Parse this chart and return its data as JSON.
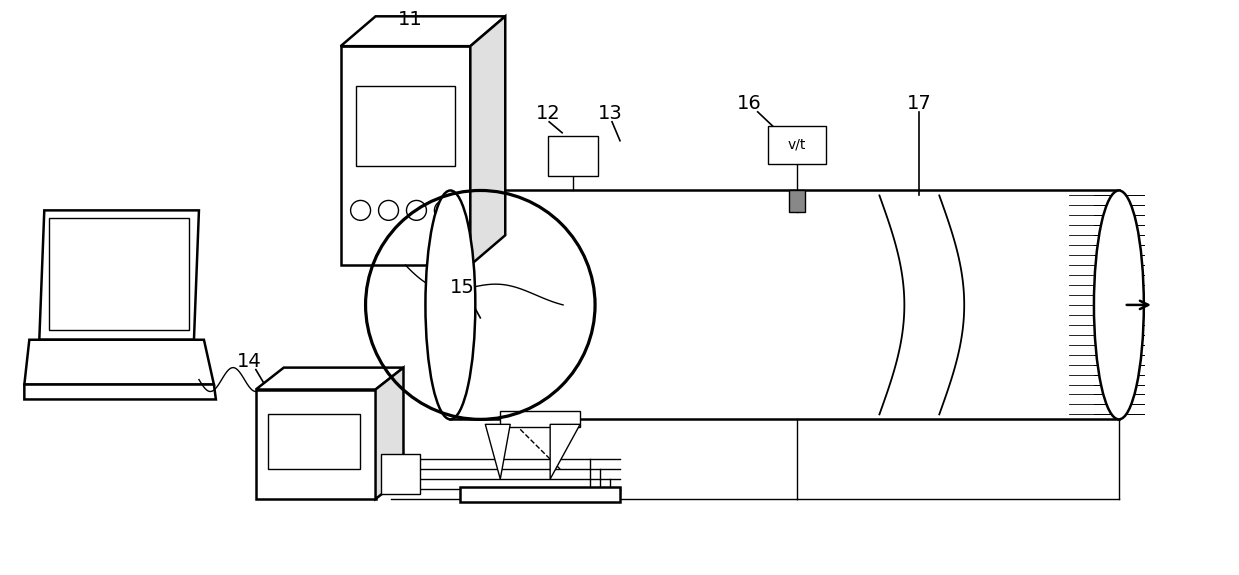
{
  "bg_color": "#ffffff",
  "line_color": "#000000",
  "lw_main": 1.8,
  "lw_thin": 1.0,
  "font_size": 14,
  "fig_w": 12.39,
  "fig_h": 5.75,
  "dpi": 100
}
